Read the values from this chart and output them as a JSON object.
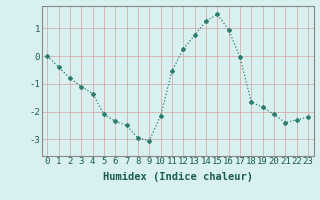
{
  "x": [
    0,
    1,
    2,
    3,
    4,
    5,
    6,
    7,
    8,
    9,
    10,
    11,
    12,
    13,
    14,
    15,
    16,
    17,
    18,
    19,
    20,
    21,
    22,
    23
  ],
  "y": [
    0.0,
    -0.4,
    -0.8,
    -1.1,
    -1.35,
    -2.1,
    -2.35,
    -2.5,
    -2.95,
    -3.05,
    -2.15,
    -0.55,
    0.25,
    0.75,
    1.25,
    1.5,
    0.95,
    -0.05,
    -1.65,
    -1.85,
    -2.1,
    -2.4,
    -2.3,
    -2.2
  ],
  "line_color": "#2d7d6e",
  "marker": "D",
  "marker_size": 2.0,
  "linewidth": 0.9,
  "xlabel": "Humidex (Indice chaleur)",
  "xlabel_fontsize": 7.5,
  "xlabel_fontweight": "bold",
  "xlim": [
    -0.5,
    23.5
  ],
  "ylim": [
    -3.6,
    1.8
  ],
  "yticks": [
    -3,
    -2,
    -1,
    0,
    1
  ],
  "xticks": [
    0,
    1,
    2,
    3,
    4,
    5,
    6,
    7,
    8,
    9,
    10,
    11,
    12,
    13,
    14,
    15,
    16,
    17,
    18,
    19,
    20,
    21,
    22,
    23
  ],
  "xtick_labels": [
    "0",
    "1",
    "2",
    "3",
    "4",
    "5",
    "6",
    "7",
    "8",
    "9",
    "10",
    "11",
    "12",
    "13",
    "14",
    "15",
    "16",
    "17",
    "18",
    "19",
    "20",
    "21",
    "22",
    "23"
  ],
  "grid_color_v": "#d4a0a0",
  "grid_color_h": "#d4a0a0",
  "bg_color": "#d8f0ef",
  "tick_fontsize": 6.5,
  "spine_color": "#888888"
}
